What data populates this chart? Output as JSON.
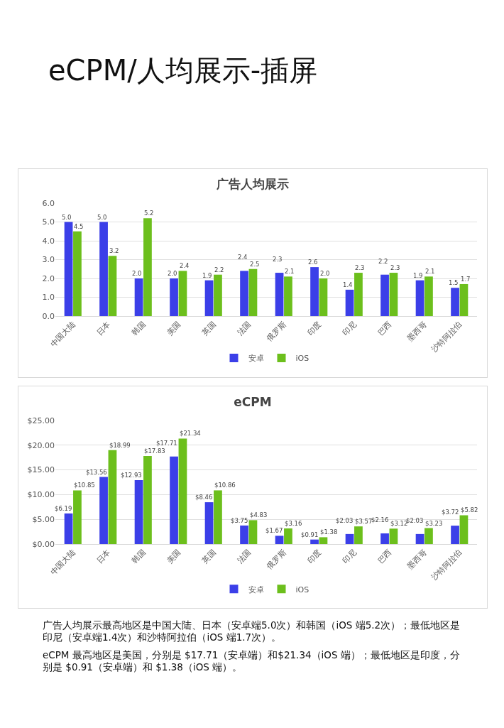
{
  "chart_data": [
    {
      "type": "other",
      "title": "eCPM/人均展示-插屏"
    },
    {
      "type": "bar",
      "title": "广告人均展示",
      "categories": [
        "中国大陆",
        "日本",
        "韩国",
        "美国",
        "英国",
        "法国",
        "俄罗斯",
        "印度",
        "印尼",
        "巴西",
        "墨西哥",
        "沙特阿拉伯"
      ],
      "series": [
        {
          "name": "安卓",
          "color": "#3b3fe8",
          "values": [
            5.0,
            5.0,
            2.0,
            2.0,
            1.9,
            2.4,
            2.3,
            2.6,
            1.4,
            2.2,
            1.9,
            1.5
          ],
          "value_labels": [
            "5.0",
            "5.0",
            "2.0",
            "2.0",
            "1.9",
            "2.4",
            "2.3",
            "2.6",
            "1.4",
            "2.2",
            "1.9",
            "1.5"
          ]
        },
        {
          "name": "iOS",
          "color": "#6cbf1c",
          "values": [
            4.5,
            3.2,
            5.2,
            2.4,
            2.2,
            2.5,
            2.1,
            2.0,
            2.3,
            2.3,
            2.1,
            1.7
          ],
          "value_labels": [
            "4.5",
            "3.2",
            "5.2",
            "2.4",
            "2.2",
            "2.5",
            "2.1",
            "2.0",
            "2.3",
            "2.3",
            "2.1",
            "1.7"
          ]
        }
      ],
      "ylim": [
        0,
        6
      ],
      "yticks": [
        {
          "value": 0,
          "label": "0.0"
        },
        {
          "value": 1,
          "label": "1.0"
        },
        {
          "value": 2,
          "label": "2.0"
        },
        {
          "value": 3,
          "label": "3.0"
        },
        {
          "value": 4,
          "label": "4.0"
        },
        {
          "value": 5,
          "label": "5.0"
        },
        {
          "value": 6,
          "label": "6.0"
        }
      ],
      "grid": "y",
      "legend": "bottom"
    },
    {
      "type": "bar",
      "title": "eCPM",
      "categories": [
        "中国大陆",
        "日本",
        "韩国",
        "美国",
        "英国",
        "法国",
        "俄罗斯",
        "印度",
        "印尼",
        "巴西",
        "墨西哥",
        "沙特阿拉伯"
      ],
      "series": [
        {
          "name": "安卓",
          "color": "#3b3fe8",
          "values": [
            6.19,
            13.56,
            12.93,
            17.71,
            8.46,
            3.75,
            1.67,
            0.91,
            2.03,
            2.16,
            2.03,
            3.72
          ],
          "value_labels": [
            "$6.19",
            "$13.56",
            "$12.93",
            "$17.71",
            "$8.46",
            "$3.75",
            "$1.67",
            "$0.91",
            "$2.03",
            "$2.16",
            "$2.03",
            "$3.72"
          ]
        },
        {
          "name": "iOS",
          "color": "#6cbf1c",
          "values": [
            10.85,
            18.99,
            17.83,
            21.34,
            10.86,
            4.83,
            3.16,
            1.38,
            3.57,
            3.12,
            3.23,
            5.82
          ],
          "value_labels": [
            "$10.85",
            "$18.99",
            "$17.83",
            "$21.34",
            "$10.86",
            "$4.83",
            "$3.16",
            "$1.38",
            "$3.57",
            "$3.12",
            "$3.23",
            "$5.82"
          ]
        }
      ],
      "ylim": [
        0,
        25
      ],
      "yticks": [
        {
          "value": 0,
          "label": "$0.00"
        },
        {
          "value": 5,
          "label": "$5.00"
        },
        {
          "value": 10,
          "label": "$10.00"
        },
        {
          "value": 15,
          "label": "$15.00"
        },
        {
          "value": 20,
          "label": "$20.00"
        },
        {
          "value": 25,
          "label": "$25.00"
        }
      ],
      "grid": "y",
      "legend": "bottom",
      "annotations": [
        "广告人均展示最高地区是中国大陆、日本（安卓端5.0次）和韩国（iOS 端5.2次）；最低地区是印尼（安卓端1.4次）和沙特阿拉伯（iOS 端1.7次）。",
        "eCPM 最高地区是美国，分别是 $17.71（安卓端）和$21.34（iOS 端）；最低地区是印度，分别是 $0.91（安卓端）和 $1.38（iOS 端）。"
      ]
    }
  ]
}
